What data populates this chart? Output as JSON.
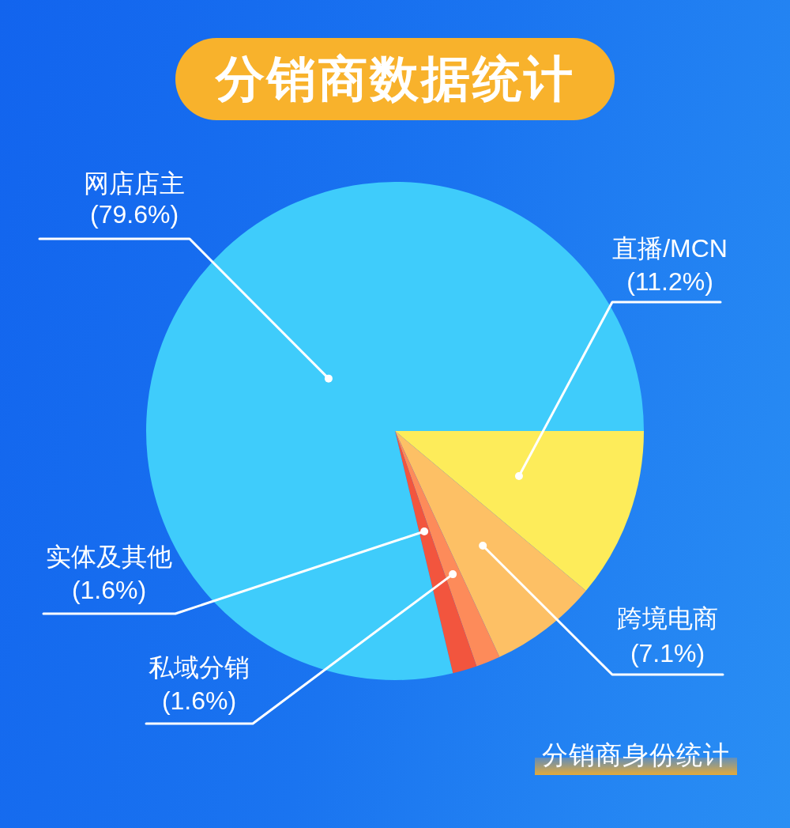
{
  "chart_data": {
    "type": "pie",
    "title": "分销商数据统计",
    "categories": [
      "直播/MCN",
      "跨境电商",
      "私域分销",
      "实体及其他",
      "网店店主"
    ],
    "values": [
      11.2,
      7.1,
      1.6,
      1.6,
      79.6
    ],
    "colors": [
      "#fdec5a",
      "#fdc065",
      "#fd8b5a",
      "#f2553e",
      "#3fccfb"
    ],
    "value_labels": [
      "(11.2%)",
      "(7.1%)",
      "(1.6%)",
      "(1.6%)",
      "(79.6%)"
    ],
    "annotations": [
      "分销商身份统计"
    ]
  }
}
